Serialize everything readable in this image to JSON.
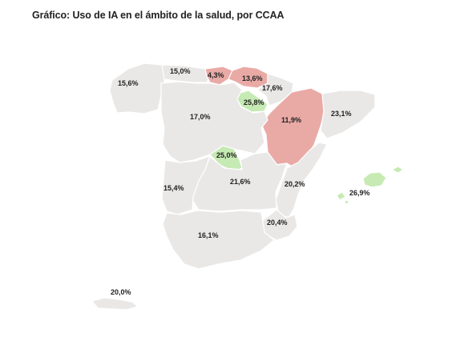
{
  "title": "Gráfico: Uso de IA en el ámbito de la salud, por CCAA",
  "colors": {
    "default": "#e9e8e7",
    "low": "#e9aaa6",
    "high": "#c6eab3",
    "text": "#222222",
    "background": "#ffffff"
  },
  "regions": [
    {
      "id": "galicia",
      "value": "15,6%",
      "category": "default"
    },
    {
      "id": "asturias",
      "value": "15,0%",
      "category": "default"
    },
    {
      "id": "cantabria",
      "value": "4,3%",
      "category": "low"
    },
    {
      "id": "pais-vasco",
      "value": "13,6%",
      "category": "low"
    },
    {
      "id": "navarra",
      "value": "17,6%",
      "category": "default"
    },
    {
      "id": "la-rioja",
      "value": "25,8%",
      "category": "high"
    },
    {
      "id": "aragon",
      "value": "11,9%",
      "category": "low"
    },
    {
      "id": "cataluna",
      "value": "23,1%",
      "category": "default"
    },
    {
      "id": "castilla-y-leon",
      "value": "17,0%",
      "category": "default"
    },
    {
      "id": "madrid",
      "value": "25,0%",
      "category": "high"
    },
    {
      "id": "extremadura",
      "value": "15,4%",
      "category": "default"
    },
    {
      "id": "castilla-la-mancha",
      "value": "21,6%",
      "category": "default"
    },
    {
      "id": "comunidad-valenciana",
      "value": "20,2%",
      "category": "default"
    },
    {
      "id": "baleares",
      "value": "26,9%",
      "category": "high"
    },
    {
      "id": "murcia",
      "value": "20,4%",
      "category": "default"
    },
    {
      "id": "andalucia",
      "value": "16,1%",
      "category": "default"
    },
    {
      "id": "canarias",
      "value": "20,0%",
      "category": "default"
    }
  ]
}
